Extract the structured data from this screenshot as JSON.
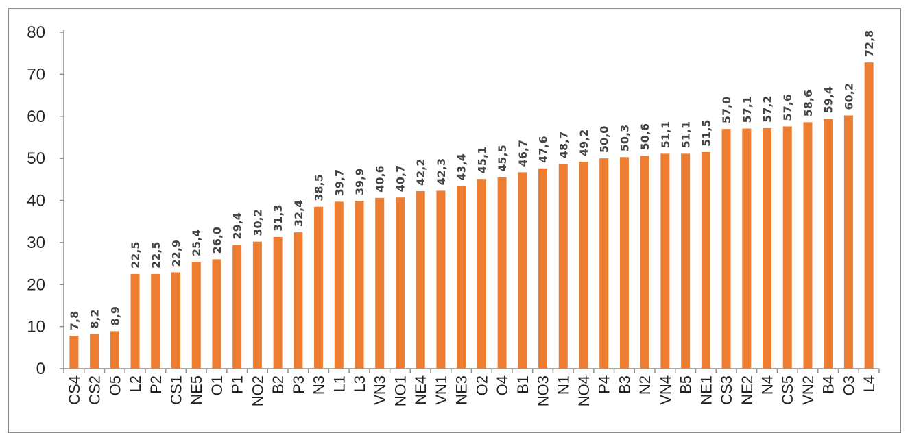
{
  "chart_data": {
    "type": "bar",
    "title": "",
    "xlabel": "",
    "ylabel": "",
    "ylim": [
      0,
      80
    ],
    "yticks": [
      "0",
      "10",
      "20",
      "30",
      "40",
      "50",
      "60",
      "70",
      "80"
    ],
    "grid": false,
    "bar_color": "#ED7D31",
    "categories": [
      "CS4",
      "CS2",
      "O5",
      "L2",
      "P2",
      "CS1",
      "NE5",
      "O1",
      "P1",
      "NO2",
      "B2",
      "P3",
      "N3",
      "L1",
      "L3",
      "VN3",
      "NO1",
      "NE4",
      "VN1",
      "NE3",
      "O2",
      "O4",
      "B1",
      "NO3",
      "N1",
      "NO4",
      "P4",
      "B3",
      "N2",
      "VN4",
      "B5",
      "NE1",
      "CS3",
      "NE2",
      "N4",
      "CS5",
      "VN2",
      "B4",
      "O3",
      "L4"
    ],
    "values": [
      7.8,
      8.2,
      8.9,
      22.5,
      22.5,
      22.9,
      25.4,
      26.0,
      29.4,
      30.2,
      31.3,
      32.4,
      38.5,
      39.7,
      39.9,
      40.6,
      40.7,
      42.2,
      42.3,
      43.4,
      45.1,
      45.5,
      46.7,
      47.6,
      48.7,
      49.2,
      50.0,
      50.3,
      50.6,
      51.1,
      51.1,
      51.5,
      57.0,
      57.1,
      57.2,
      57.6,
      58.6,
      59.4,
      60.2,
      72.8
    ],
    "data_labels": [
      "7,8",
      "8,2",
      "8,9",
      "22,5",
      "22,5",
      "22,9",
      "25,4",
      "26,0",
      "29,4",
      "30,2",
      "31,3",
      "32,4",
      "38,5",
      "39,7",
      "39,9",
      "40,6",
      "40,7",
      "42,2",
      "42,3",
      "43,4",
      "45,1",
      "45,5",
      "46,7",
      "47,6",
      "48,7",
      "49,2",
      "50,0",
      "50,3",
      "50,6",
      "51,1",
      "51,1",
      "51,5",
      "57,0",
      "57,1",
      "57,2",
      "57,6",
      "58,6",
      "59,4",
      "60,2",
      "72,8"
    ]
  }
}
